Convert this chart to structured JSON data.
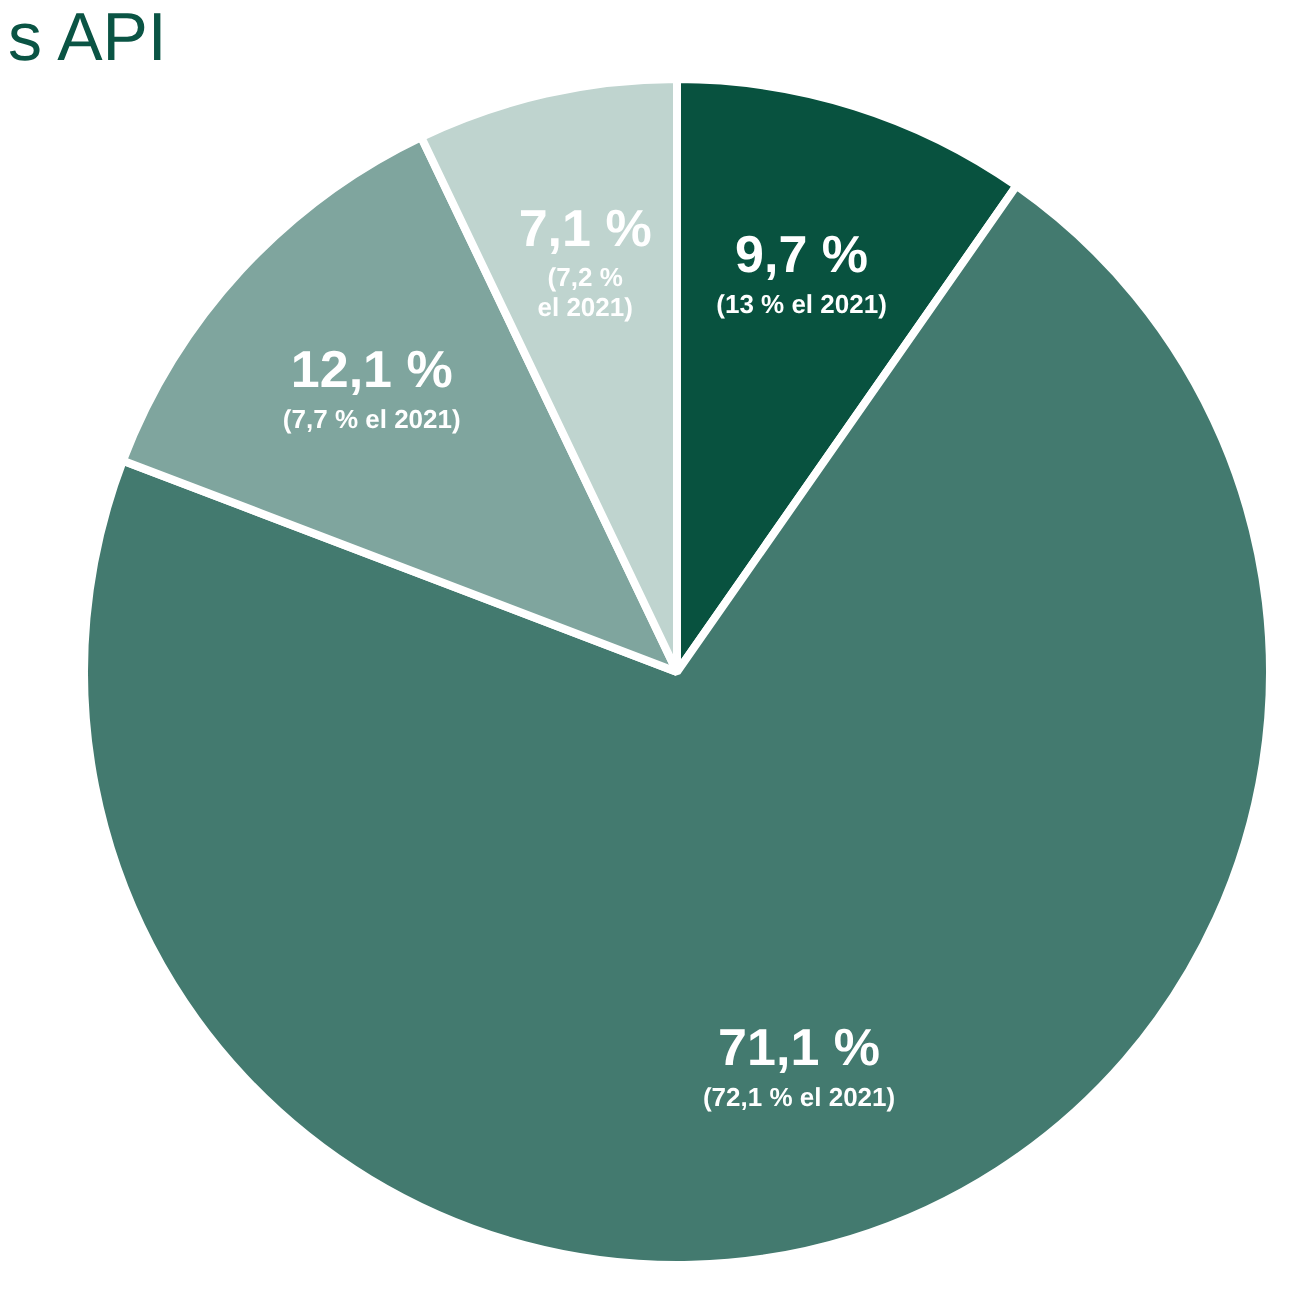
{
  "chart_data": {
    "type": "pie",
    "title": "s API",
    "categories": [
      null,
      null,
      null,
      null
    ],
    "values": [
      9.7,
      71.1,
      12.1,
      7.1
    ],
    "colors": [
      "#08523f",
      "#437a6f",
      "#7fa59e",
      "#bfd4cf"
    ],
    "value_labels": [
      "9,7 %\n(13 % el 2021)",
      "71,1 %\n(72,1 % el 2021)",
      "12,1 %\n(7,7 % el 2021)",
      "7,1 %\n(7,2 %\nel 2021)"
    ],
    "legend": false
  }
}
